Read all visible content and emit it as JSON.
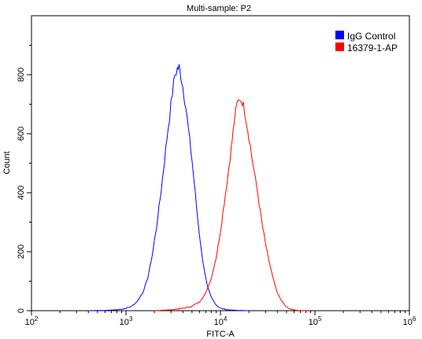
{
  "chart_data": {
    "type": "line",
    "title": "Multi-sample: P2",
    "xlabel": "FITC-A",
    "ylabel": "Count",
    "x_scale": "log",
    "xlim": [
      100,
      1000000
    ],
    "ylim": [
      0,
      1000
    ],
    "x_ticks": [
      {
        "value": 100,
        "base": "10",
        "exp": "2"
      },
      {
        "value": 1000,
        "base": "10",
        "exp": "3"
      },
      {
        "value": 10000,
        "base": "10",
        "exp": "4"
      },
      {
        "value": 100000,
        "base": "10",
        "exp": "5"
      },
      {
        "value": 1000000,
        "base": "10",
        "exp": "6"
      }
    ],
    "y_ticks": [
      0,
      200,
      400,
      600,
      800
    ],
    "grid": false,
    "legend_position": "top-right",
    "series": [
      {
        "name": "IgG Control",
        "color": "#0000ff",
        "points": [
          [
            400,
            0
          ],
          [
            600,
            1
          ],
          [
            800,
            3
          ],
          [
            1000,
            8
          ],
          [
            1150,
            15
          ],
          [
            1300,
            30
          ],
          [
            1500,
            60
          ],
          [
            1700,
            110
          ],
          [
            1900,
            190
          ],
          [
            2100,
            280
          ],
          [
            2300,
            380
          ],
          [
            2500,
            480
          ],
          [
            2700,
            580
          ],
          [
            2900,
            660
          ],
          [
            3100,
            740
          ],
          [
            3300,
            800
          ],
          [
            3500,
            820
          ],
          [
            3650,
            825
          ],
          [
            3800,
            800
          ],
          [
            4000,
            760
          ],
          [
            4300,
            690
          ],
          [
            4600,
            610
          ],
          [
            5000,
            510
          ],
          [
            5400,
            400
          ],
          [
            5800,
            300
          ],
          [
            6300,
            200
          ],
          [
            6800,
            130
          ],
          [
            7300,
            80
          ],
          [
            8000,
            45
          ],
          [
            9000,
            20
          ],
          [
            10000,
            8
          ],
          [
            12000,
            3
          ],
          [
            15000,
            1
          ],
          [
            20000,
            0
          ]
        ]
      },
      {
        "name": "16379-1-AP",
        "color": "#ff0000",
        "points": [
          [
            2000,
            0
          ],
          [
            3000,
            3
          ],
          [
            4000,
            8
          ],
          [
            5000,
            15
          ],
          [
            6000,
            30
          ],
          [
            7000,
            60
          ],
          [
            8000,
            110
          ],
          [
            9000,
            180
          ],
          [
            10000,
            270
          ],
          [
            11000,
            370
          ],
          [
            12000,
            460
          ],
          [
            13000,
            550
          ],
          [
            14000,
            640
          ],
          [
            15000,
            700
          ],
          [
            16000,
            720
          ],
          [
            17000,
            710
          ],
          [
            18000,
            680
          ],
          [
            20000,
            590
          ],
          [
            22000,
            500
          ],
          [
            25000,
            390
          ],
          [
            28000,
            280
          ],
          [
            32000,
            180
          ],
          [
            36000,
            110
          ],
          [
            40000,
            60
          ],
          [
            45000,
            30
          ],
          [
            50000,
            12
          ],
          [
            55000,
            5
          ],
          [
            65000,
            1
          ],
          [
            80000,
            0
          ]
        ]
      }
    ]
  }
}
